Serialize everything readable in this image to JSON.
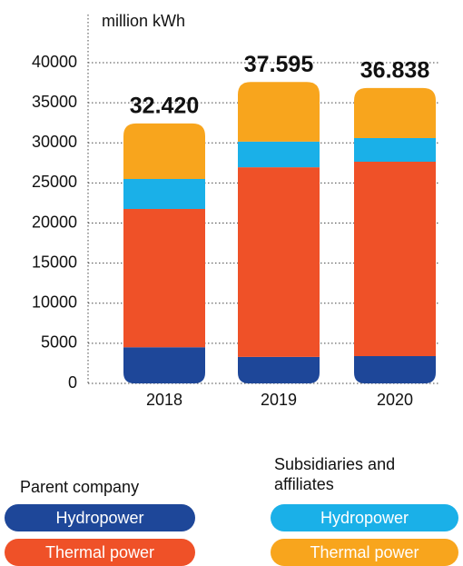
{
  "chart_data": {
    "type": "stacked_bar",
    "y_label": "million kWh",
    "categories": [
      "2018",
      "2019",
      "2020"
    ],
    "series": [
      {
        "name": "Hydropower",
        "group": "Parent company",
        "color": "#1e4799",
        "values": [
          4500,
          3300,
          3400
        ]
      },
      {
        "name": "Thermal power",
        "group": "Parent company",
        "color": "#ef5128",
        "values": [
          17250,
          23650,
          24250
        ]
      },
      {
        "name": "Hydropower",
        "group": "Subsidiaries and affiliates",
        "color": "#1ab0e8",
        "values": [
          3750,
          3200,
          2950
        ]
      },
      {
        "name": "Thermal power",
        "group": "Subsidiaries and affiliates",
        "color": "#f8a51d",
        "values": [
          6920,
          7445,
          6238
        ]
      }
    ],
    "totals": {
      "values": [
        32420,
        37595,
        36838
      ],
      "value_labels": [
        "32.420",
        "37.595",
        "36.838"
      ]
    },
    "legend_groups": [
      "Parent company",
      "Subsidiaries and affiliates"
    ],
    "ylim": [
      0,
      40000
    ],
    "yticks": [
      0,
      5000,
      10000,
      15000,
      20000,
      25000,
      30000,
      35000,
      40000
    ],
    "grid": true
  }
}
